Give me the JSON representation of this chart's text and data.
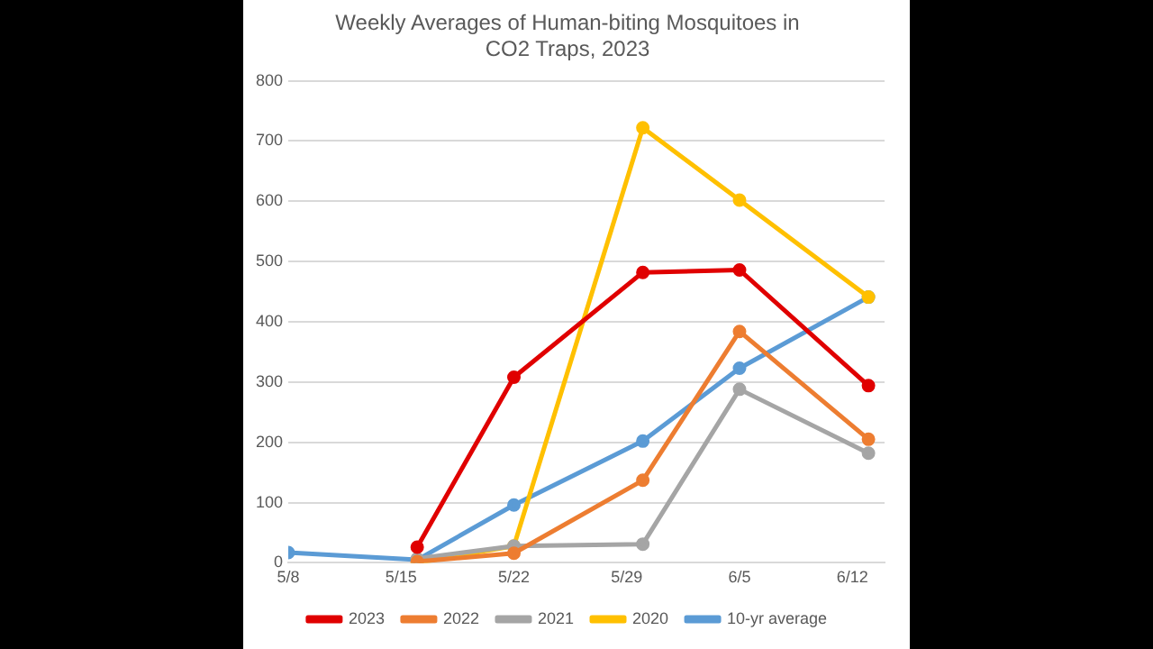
{
  "chart_data": {
    "type": "line",
    "title": [
      "Weekly Averages of Human-biting Mosquitoes in",
      "CO2 Traps, 2023"
    ],
    "x": [
      "2023-05-16",
      "2023-05-22",
      "2023-05-30",
      "2023-06-05",
      "2023-06-13"
    ],
    "series": [
      {
        "name": "2023",
        "color": "#e00000",
        "values": [
          26,
          308,
          482,
          486,
          294
        ]
      },
      {
        "name": "2022",
        "color": "#ed7d31",
        "values": [
          2,
          16,
          137,
          384,
          205
        ]
      },
      {
        "name": "2021",
        "color": "#a5a5a5",
        "values": [
          7,
          28,
          31,
          288,
          182
        ]
      },
      {
        "name": "2020",
        "color": "#ffc000",
        "values": [
          0,
          28,
          722,
          602,
          441
        ]
      },
      {
        "name": "10-yr average",
        "color": "#5b9bd5",
        "x": [
          "2023-05-08",
          "2023-05-16",
          "2023-05-22",
          "2023-05-30",
          "2023-06-05",
          "2023-06-13"
        ],
        "values": [
          17,
          5,
          96,
          202,
          323,
          441
        ]
      }
    ],
    "xlim": [
      "2023-05-08",
      "2023-06-14"
    ],
    "xticks": [
      {
        "value": "2023-05-08",
        "label": "5/8"
      },
      {
        "value": "2023-05-15",
        "label": "5/15"
      },
      {
        "value": "2023-05-22",
        "label": "5/22"
      },
      {
        "value": "2023-05-29",
        "label": "5/29"
      },
      {
        "value": "2023-06-05",
        "label": "6/5"
      },
      {
        "value": "2023-06-12",
        "label": "6/12"
      }
    ],
    "ylim": [
      0,
      800
    ],
    "yticks": [
      0,
      100,
      200,
      300,
      400,
      500,
      600,
      700,
      800
    ],
    "grid": "y",
    "legend": "bottom",
    "marker": "circle",
    "line_style": "solid"
  }
}
